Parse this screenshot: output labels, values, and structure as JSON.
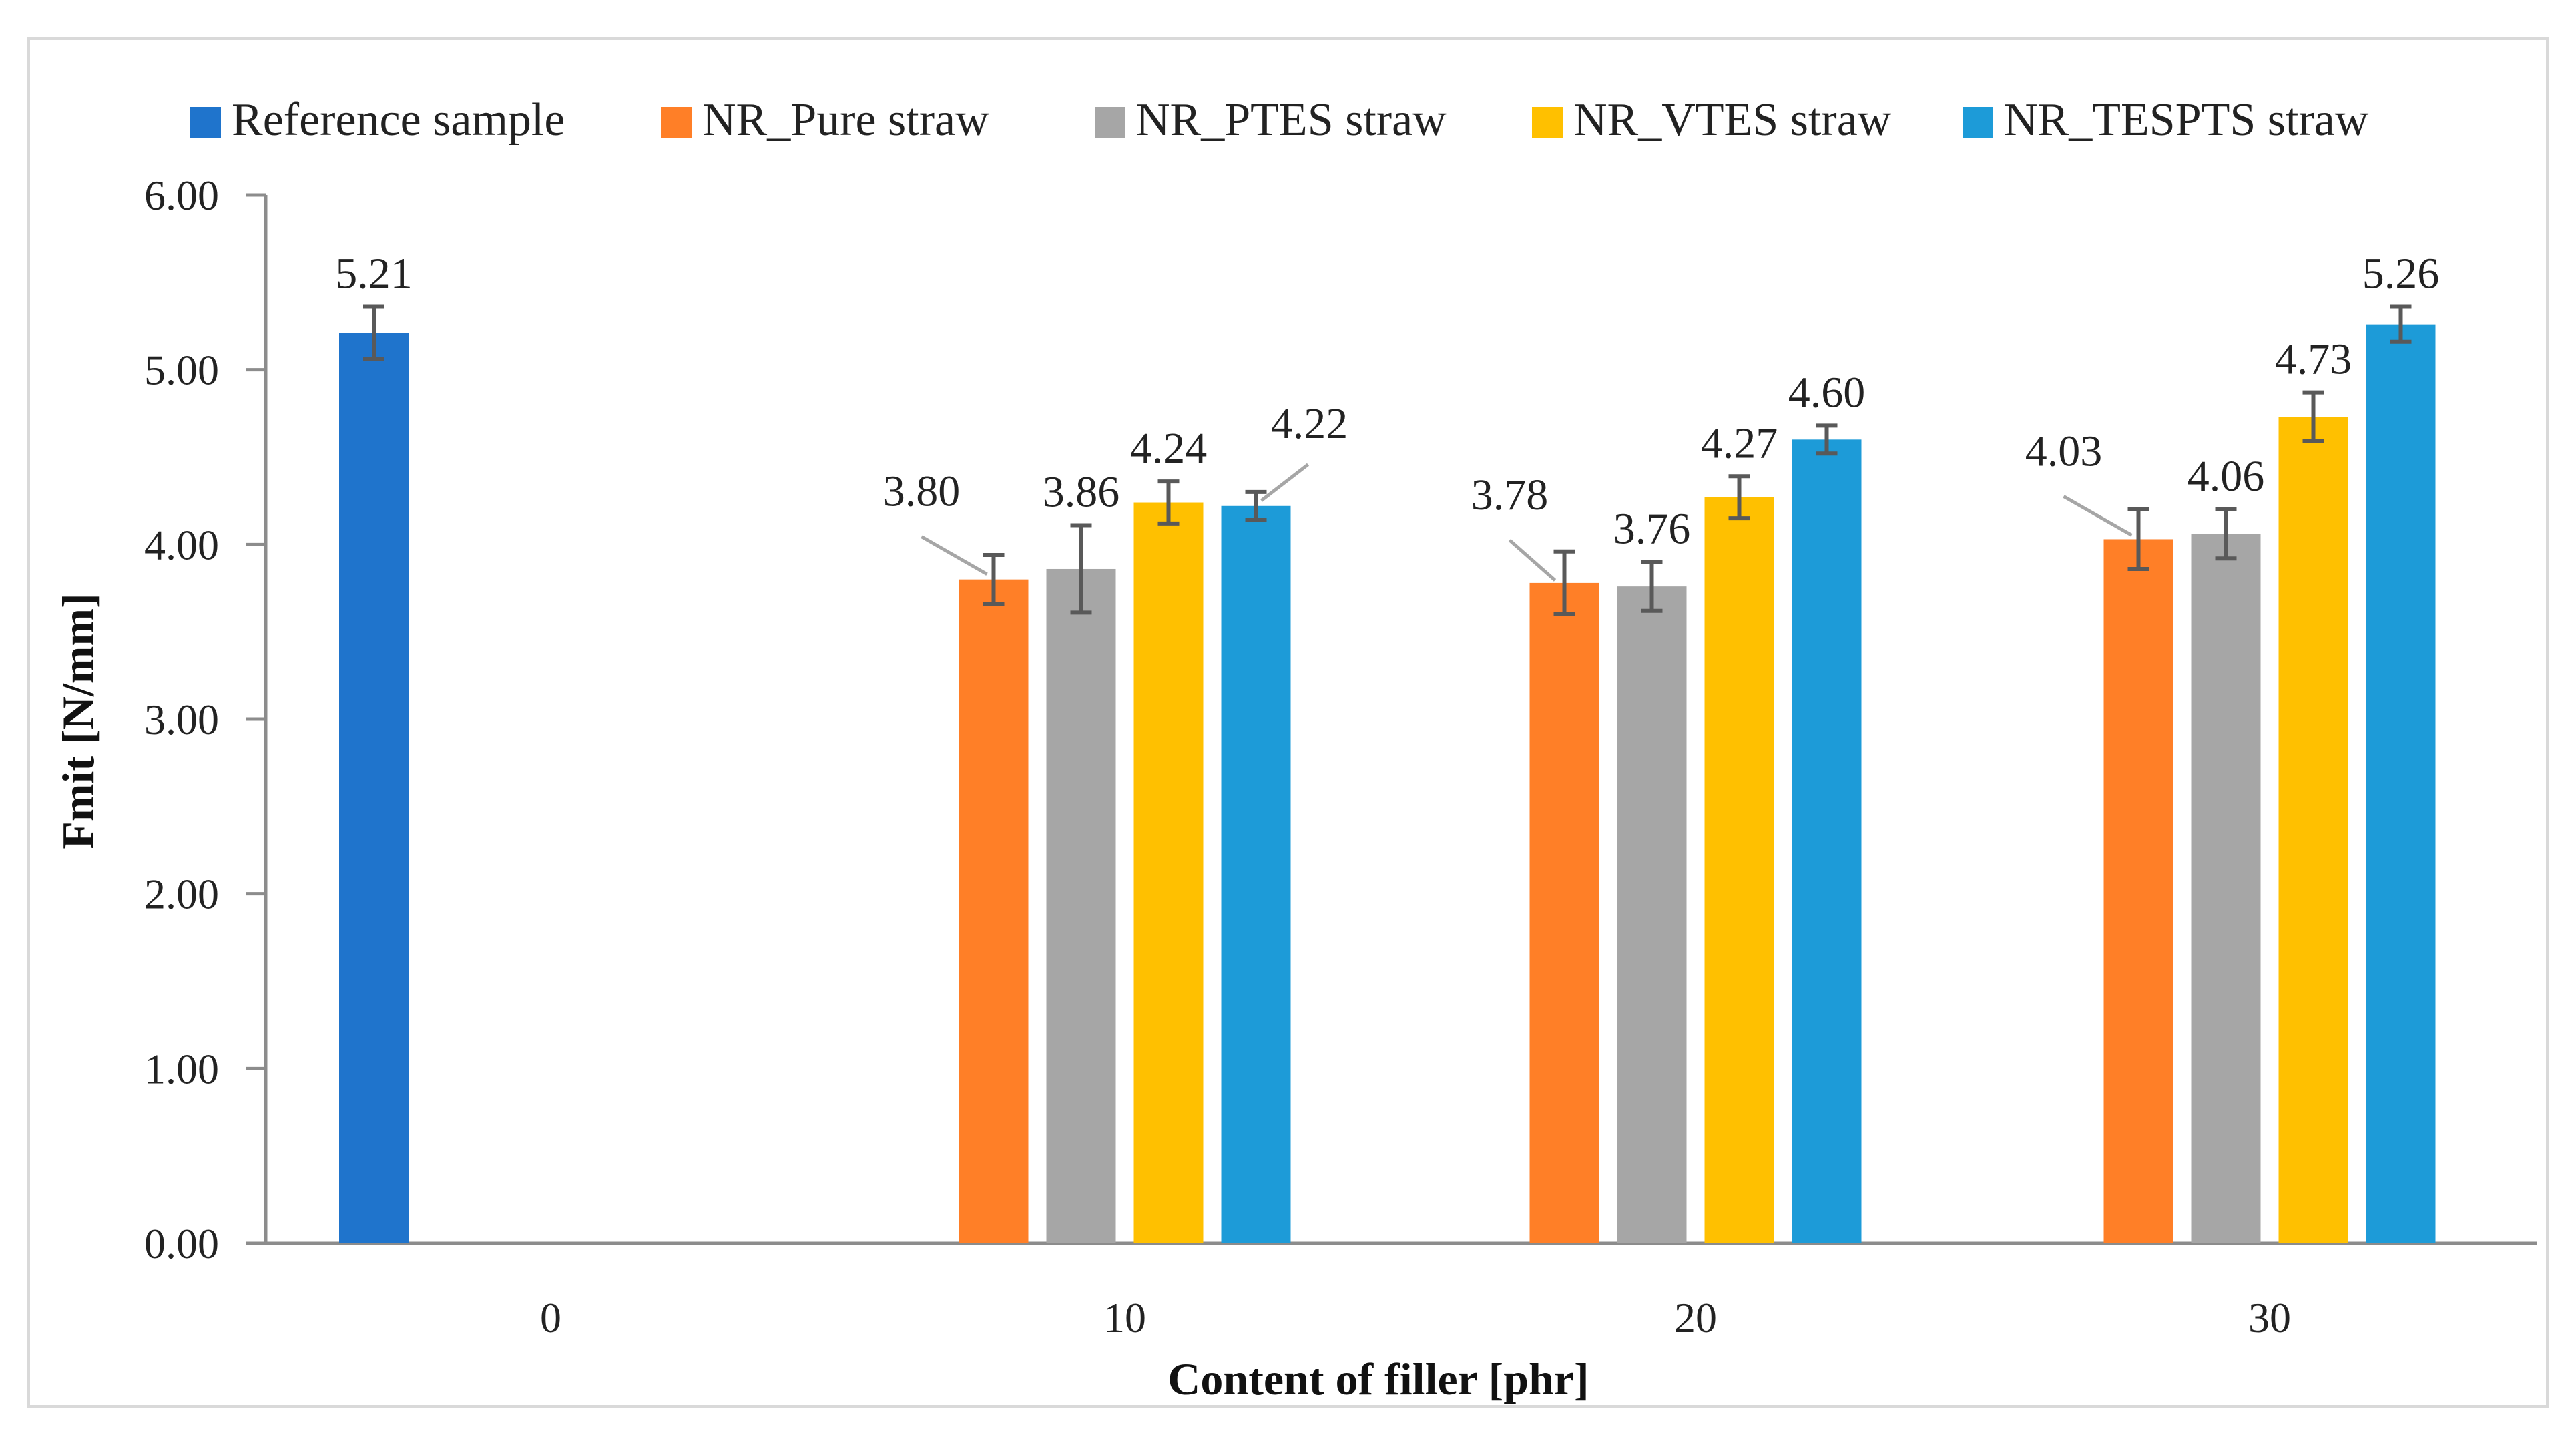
{
  "chart_data": {
    "type": "bar",
    "title": "",
    "xlabel": "Content of filler [phr]",
    "ylabel": "Fmit [N/mm]",
    "ylim": [
      0,
      6
    ],
    "yticks": [
      0,
      1,
      2,
      3,
      4,
      5,
      6
    ],
    "ytick_labels": [
      "0.00",
      "1.00",
      "2.00",
      "3.00",
      "4.00",
      "5.00",
      "6.00"
    ],
    "categories": [
      "0",
      "10",
      "20",
      "30"
    ],
    "grid": false,
    "legend_position": "top",
    "series": [
      {
        "name": "Reference sample",
        "color": "#1f74cc",
        "values": [
          5.21,
          null,
          null,
          null
        ],
        "labels": [
          "5.21",
          null,
          null,
          null
        ],
        "errors": [
          0.15,
          null,
          null,
          null
        ]
      },
      {
        "name": "NR_Pure straw",
        "color": "#ff7f27",
        "values": [
          null,
          3.8,
          3.78,
          4.03
        ],
        "labels": [
          null,
          "3.80",
          "3.78",
          "4.03"
        ],
        "errors": [
          null,
          0.14,
          0.18,
          0.17
        ]
      },
      {
        "name": "NR_PTES straw",
        "color": "#a6a6a6",
        "values": [
          null,
          3.86,
          3.76,
          4.06
        ],
        "labels": [
          null,
          "3.86",
          "3.76",
          "4.06"
        ],
        "errors": [
          null,
          0.25,
          0.14,
          0.14
        ]
      },
      {
        "name": "NR_VTES straw",
        "color": "#ffc000",
        "values": [
          null,
          4.24,
          4.27,
          4.73
        ],
        "labels": [
          null,
          "4.24",
          "4.27",
          "4.73"
        ],
        "errors": [
          null,
          0.12,
          0.12,
          0.14
        ]
      },
      {
        "name": "NR_TESPTS straw",
        "color": "#1d9bd8",
        "values": [
          null,
          4.22,
          4.6,
          5.26
        ],
        "labels": [
          null,
          "4.22",
          "4.60",
          "5.26"
        ],
        "errors": [
          null,
          0.08,
          0.08,
          0.1
        ]
      }
    ]
  }
}
